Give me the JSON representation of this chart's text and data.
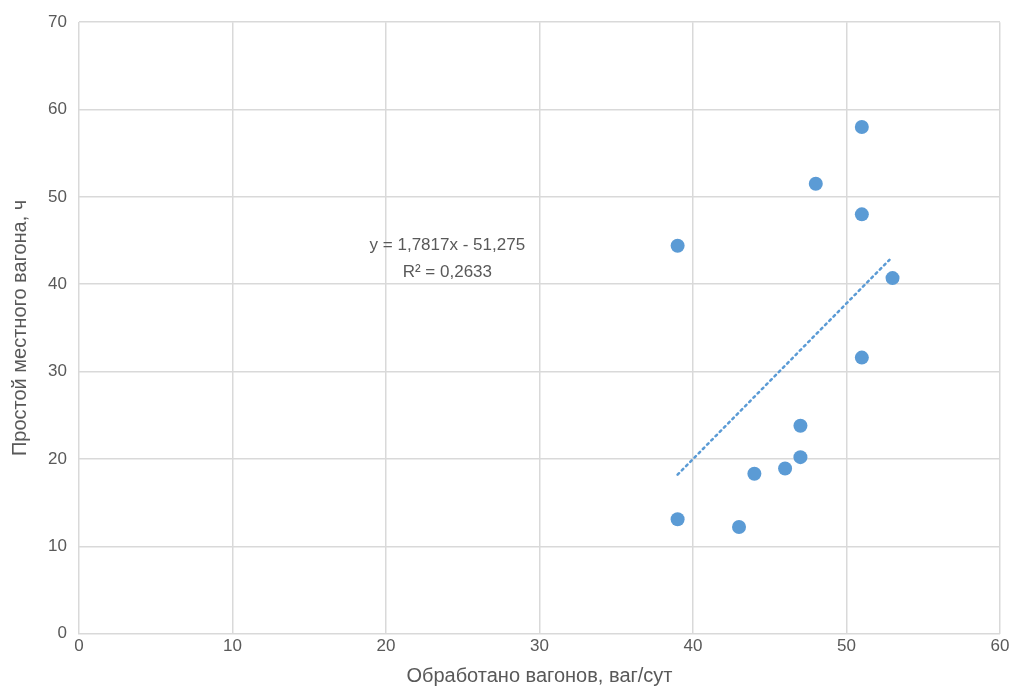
{
  "chart_data": {
    "type": "scatter",
    "xlabel": "Обработано вагонов, ваг/сут",
    "ylabel": "Простой местного вагона, ч",
    "xlim": [
      0,
      60
    ],
    "xticks": [
      0,
      10,
      20,
      30,
      40,
      50,
      60
    ],
    "ylim": [
      0,
      70
    ],
    "yticks": [
      0,
      10,
      20,
      30,
      40,
      50,
      60,
      70
    ],
    "grid": true,
    "legend": false,
    "series": [
      {
        "type": "scatter",
        "color": "#5b9bd5",
        "marker": "circle",
        "x": [
          39,
          39,
          43,
          44,
          46,
          47,
          47,
          48,
          51,
          51,
          51,
          53
        ],
        "values": [
          44.4,
          13.1,
          12.2,
          18.3,
          18.9,
          20.2,
          23.8,
          51.5,
          58,
          48,
          31.6,
          40.7
        ]
      },
      {
        "type": "line",
        "color": "#5b9bd5",
        "marker": "none",
        "line_style": "dotted",
        "x": [
          39,
          52.8
        ],
        "values": [
          18.2,
          42.8
        ]
      }
    ],
    "annotations": [
      "y = 1,7817x - 51,275",
      "R² = 0,2633"
    ]
  }
}
